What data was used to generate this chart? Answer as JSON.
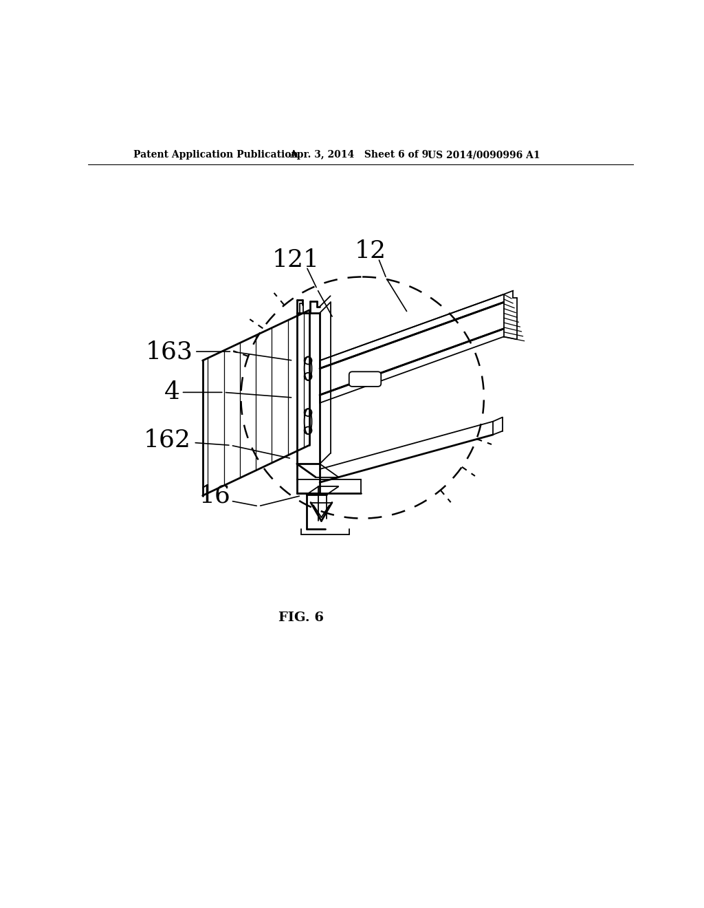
{
  "bg_color": "#ffffff",
  "header_left": "Patent Application Publication",
  "header_mid": "Apr. 3, 2014   Sheet 6 of 9",
  "header_right": "US 2014/0090996 A1",
  "fig_label": "FIG. 6",
  "label_fontsize": 26,
  "fig_label_fontsize": 14,
  "header_fontsize": 10,
  "lw_main": 2.0,
  "lw_thin": 1.3,
  "lw_leader": 1.2
}
